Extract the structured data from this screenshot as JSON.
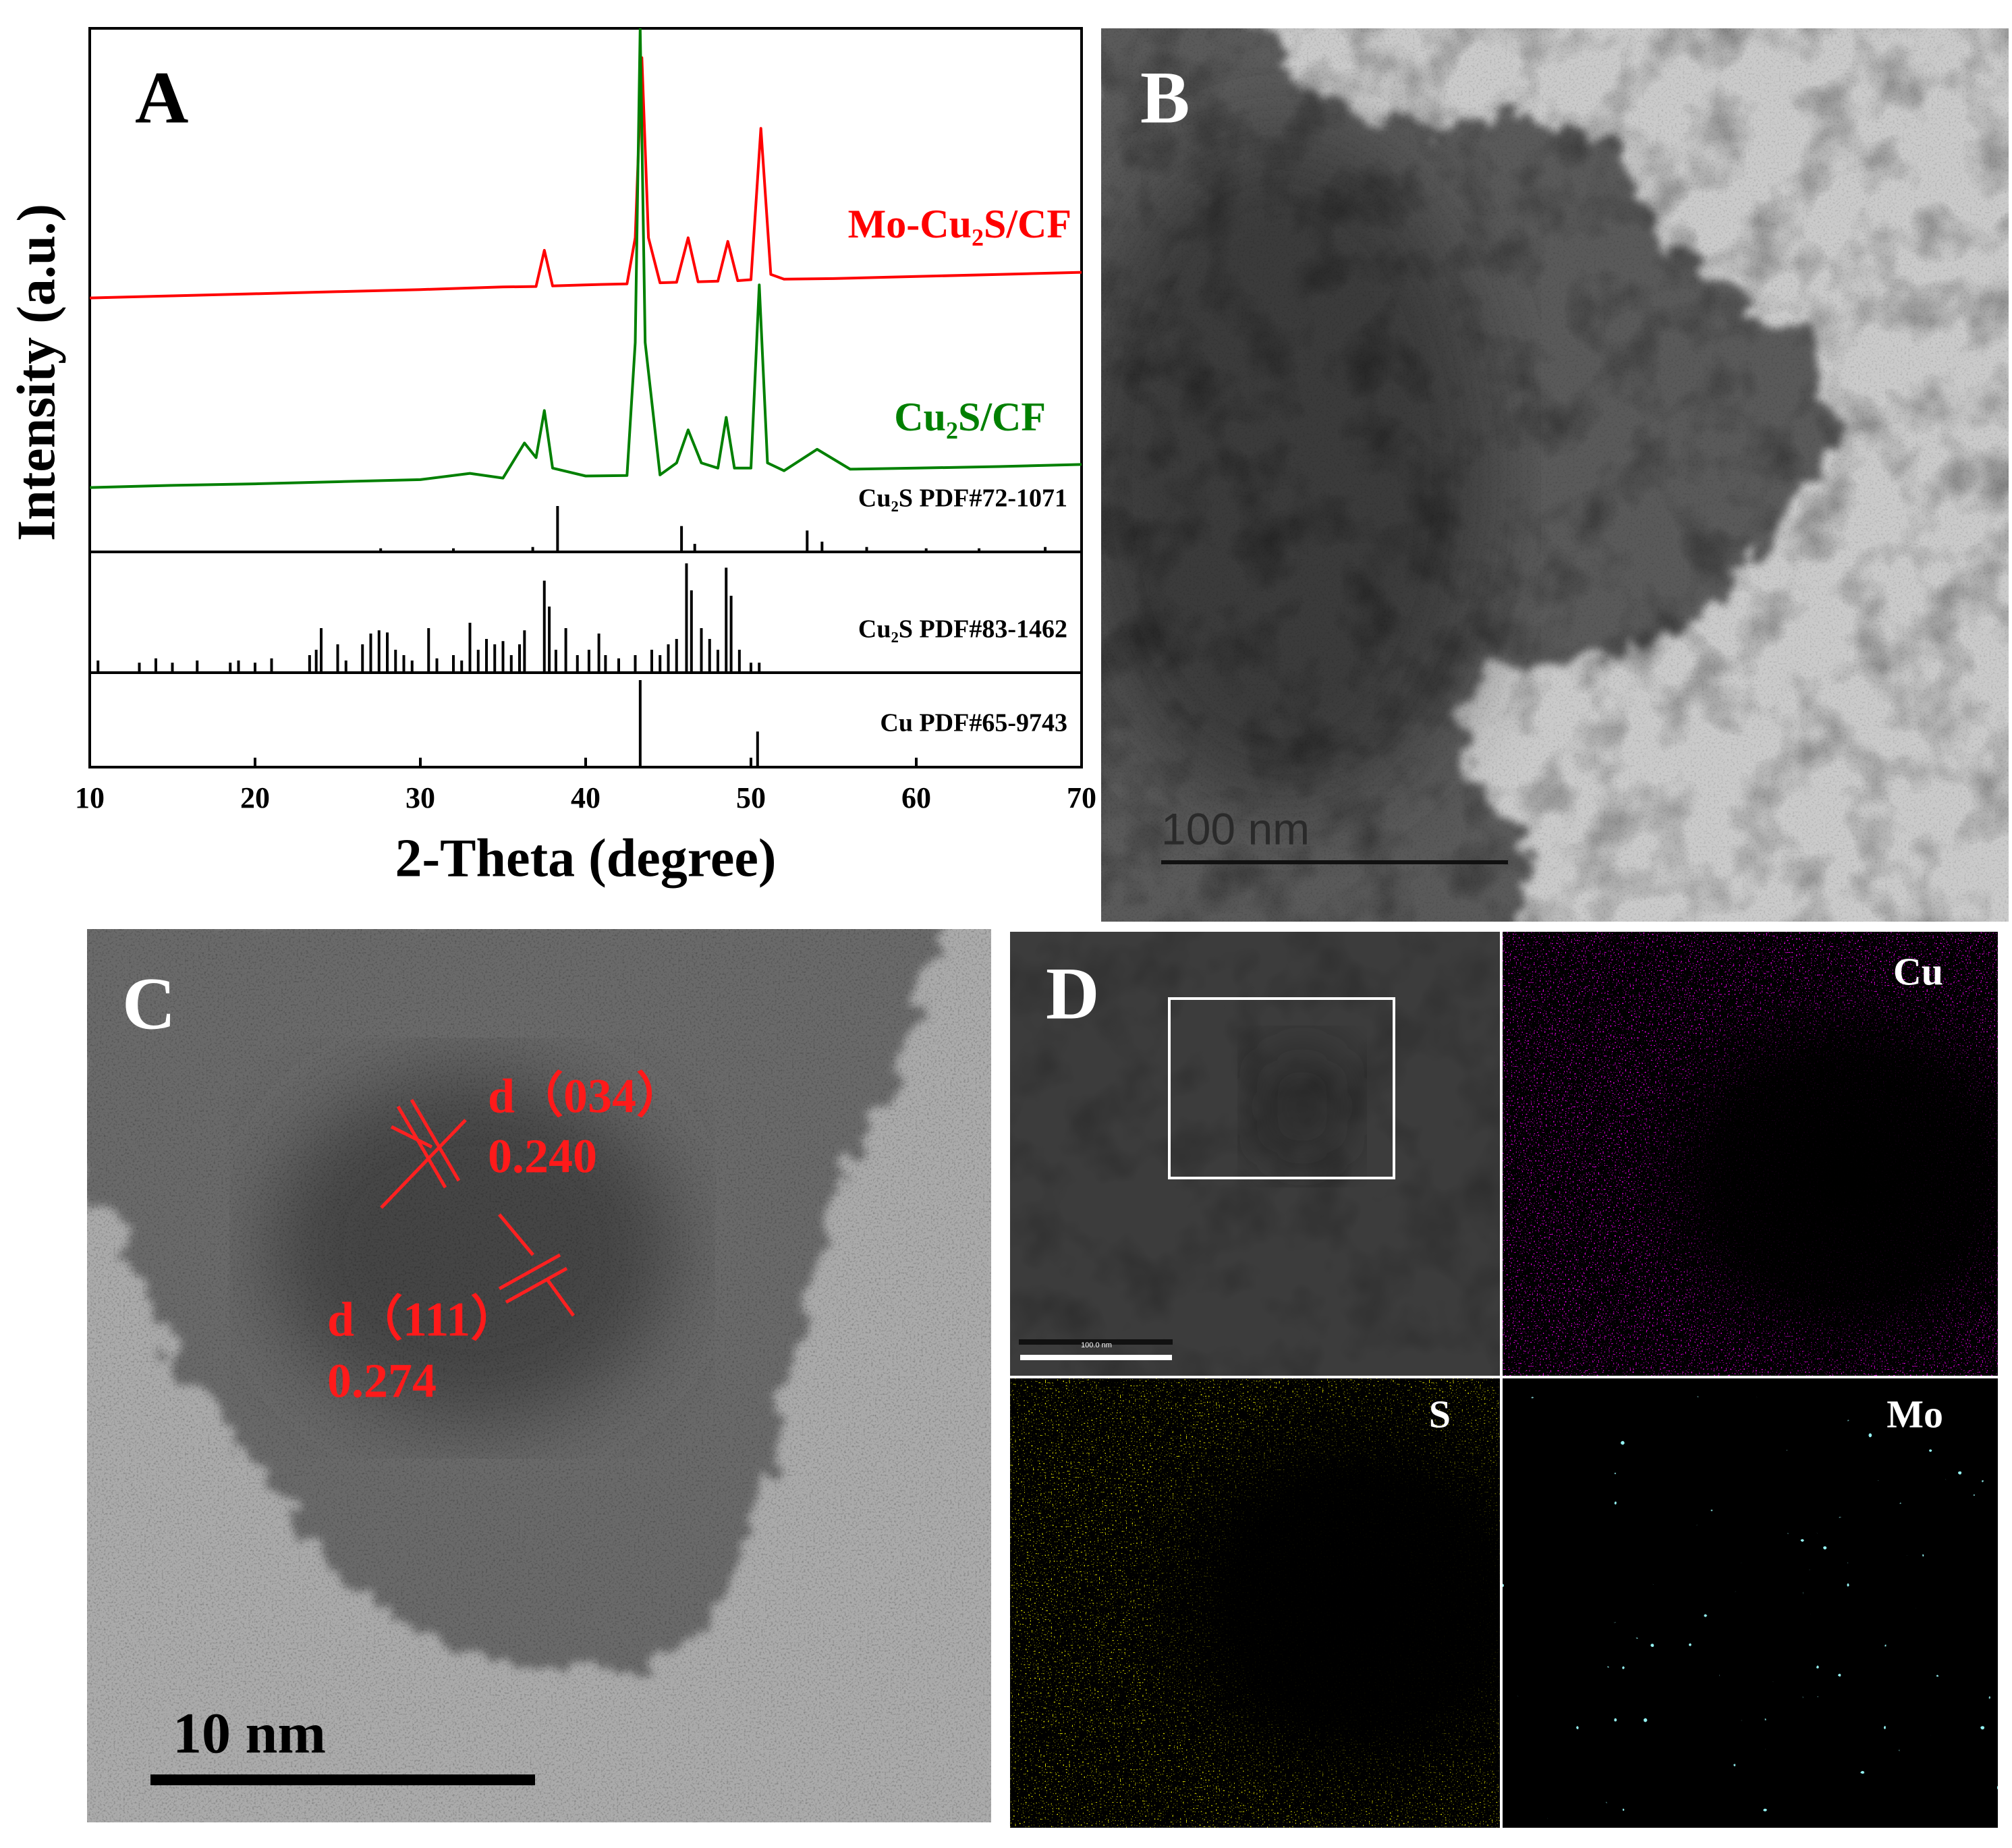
{
  "chart_data": {
    "type": "line",
    "panel_label": "A",
    "xlabel": "2-Theta (degree)",
    "ylabel": "Intensity (a.u.)",
    "xlim": [
      10,
      70
    ],
    "xticks": [
      10,
      20,
      30,
      40,
      50,
      60,
      70
    ],
    "ylim": [
      0,
      100
    ],
    "reference_ylim": [
      0,
      100
    ],
    "series": [
      {
        "name": "Mo-Cu₂S/CF",
        "color": "#ff0000",
        "x": [
          10,
          15,
          20,
          25,
          30,
          35,
          37,
          37.5,
          38,
          40,
          42.5,
          43,
          43.4,
          43.8,
          44.5,
          45.5,
          46.2,
          46.8,
          48,
          48.6,
          49.2,
          50,
          50.6,
          51.2,
          52,
          55,
          60,
          65,
          70
        ],
        "values": [
          48.5,
          48.9,
          49.3,
          49.7,
          50.1,
          50.6,
          50.7,
          57.6,
          50.8,
          51,
          51.2,
          60,
          94.4,
          60,
          51.4,
          51.5,
          60,
          51.6,
          51.7,
          59.3,
          51.8,
          52,
          80.9,
          53,
          52.1,
          52.2,
          52.6,
          53,
          53.4
        ]
      },
      {
        "name": "Cu₂S/CF",
        "color": "#008000",
        "x": [
          10,
          15,
          20,
          25,
          30,
          33,
          35,
          36.3,
          37,
          37.5,
          38,
          40,
          42.5,
          43,
          43.3,
          43.6,
          44.5,
          45.5,
          46.2,
          47,
          48,
          48.5,
          49,
          50,
          50.5,
          51,
          52,
          54,
          56,
          60,
          65,
          70
        ],
        "values": [
          12.3,
          12.7,
          13,
          13.4,
          13.8,
          15,
          14.1,
          20.8,
          18,
          27,
          16,
          14.5,
          14.6,
          40,
          100,
          40,
          14.7,
          17,
          23.3,
          17,
          16,
          25.7,
          16,
          16,
          51,
          17,
          15.5,
          19.6,
          15.8,
          16,
          16.3,
          16.7
        ]
      }
    ],
    "references": [
      {
        "name": "Cu₂S PDF#72-1071",
        "color": "#000000",
        "positions": [
          27.6,
          32.0,
          36.8,
          38.3,
          45.8,
          46.6,
          53.4,
          54.3,
          57.0,
          60.6,
          63.8,
          67.8
        ],
        "intensities": [
          5,
          5,
          8,
          100,
          55,
          15,
          45,
          20,
          8,
          5,
          5,
          8
        ]
      },
      {
        "name": "Cu₂S PDF#83-1462",
        "color": "#000000",
        "positions": [
          10.5,
          13,
          14,
          15,
          16.5,
          18.5,
          19,
          20,
          21,
          23.3,
          23.7,
          24,
          25,
          25.5,
          26.5,
          27,
          27.5,
          28,
          28.5,
          29,
          29.5,
          30.5,
          31,
          32,
          32.5,
          33,
          33.5,
          34,
          34.5,
          35,
          35.5,
          36,
          36.3,
          37.5,
          37.8,
          38.2,
          38.8,
          39.5,
          40.2,
          40.8,
          41.2,
          42,
          43,
          44,
          44.5,
          45,
          45.5,
          46.1,
          46.4,
          47,
          47.5,
          48,
          48.5,
          48.8,
          49.3,
          50,
          50.5
        ],
        "intensities": [
          10,
          8,
          12,
          8,
          10,
          8,
          10,
          8,
          12,
          15,
          20,
          40,
          25,
          10,
          25,
          35,
          38,
          36,
          20,
          15,
          10,
          40,
          12,
          15,
          10,
          45,
          20,
          30,
          25,
          28,
          15,
          25,
          38,
          84,
          60,
          20,
          40,
          15,
          20,
          35,
          15,
          12,
          15,
          20,
          15,
          25,
          30,
          100,
          75,
          40,
          30,
          20,
          96,
          70,
          20,
          8,
          8
        ]
      },
      {
        "name": "Cu PDF#65-9743",
        "color": "#000000",
        "positions": [
          43.3,
          50.4
        ],
        "intensities": [
          100,
          40
        ]
      }
    ]
  },
  "panel_b": {
    "label": "B",
    "scale_bar": "100 nm"
  },
  "panel_c": {
    "label": "C",
    "annotations": [
      {
        "plane": "d（034）",
        "spacing": "0.240"
      },
      {
        "plane": "d（111）",
        "spacing": "0.274"
      }
    ],
    "scale_bar": "10 nm"
  },
  "panel_d": {
    "label": "D",
    "scale_bar": "100.0 nm",
    "maps": [
      "Cu",
      "S",
      "Mo"
    ]
  }
}
